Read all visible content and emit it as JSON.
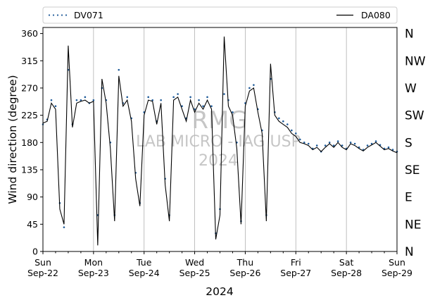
{
  "chart_data": {
    "type": "line",
    "xlabel": "2024",
    "ylabel": "Wind direction (degree)",
    "ylim": [
      0,
      370
    ],
    "xlim": [
      "2024-09-22 00:00",
      "2024-09-29 00:00"
    ],
    "grid": "vertical lines at day boundaries",
    "legend": {
      "placement": "top (above plot)"
    },
    "y_ticks": [
      0,
      45,
      90,
      135,
      180,
      225,
      270,
      315,
      360
    ],
    "x_ticks": [
      {
        "day": "Sun",
        "date": "Sep-22"
      },
      {
        "day": "Mon",
        "date": "Sep-23"
      },
      {
        "day": "Tue",
        "date": "Sep-24"
      },
      {
        "day": "Wed",
        "date": "Sep-25"
      },
      {
        "day": "Thu",
        "date": "Sep-26"
      },
      {
        "day": "Fri",
        "date": "Sep-27"
      },
      {
        "day": "Sat",
        "date": "Sep-28"
      },
      {
        "day": "Sun",
        "date": "Sep-29"
      }
    ],
    "right_labels": [
      "N",
      "NE",
      "E",
      "SE",
      "S",
      "SW",
      "W",
      "NW",
      "N"
    ],
    "watermark": {
      "line1": "RMG",
      "line2": "LAB MICRO - IAG USP",
      "line3": "2024"
    },
    "series": [
      {
        "name": "DV071",
        "style": "dotted markers",
        "color": "#1f5b99",
        "x_hours": [
          0,
          2,
          4,
          6,
          8,
          10,
          12,
          14,
          16,
          18,
          20,
          22,
          24,
          26,
          28,
          30,
          32,
          34,
          36,
          38,
          40,
          42,
          44,
          46,
          48,
          50,
          52,
          54,
          56,
          58,
          60,
          62,
          64,
          66,
          68,
          70,
          72,
          74,
          76,
          78,
          80,
          82,
          84,
          86,
          88,
          90,
          92,
          94,
          96,
          98,
          100,
          102,
          104,
          106,
          108,
          110,
          112,
          114,
          116,
          118,
          120,
          122,
          124,
          126,
          128,
          130,
          132,
          134,
          136,
          138,
          140,
          142,
          144,
          146,
          148,
          150,
          152,
          154,
          156,
          158,
          160,
          162,
          164,
          166,
          168
        ],
        "values": [
          210,
          218,
          250,
          240,
          80,
          40,
          300,
          210,
          250,
          250,
          255,
          245,
          250,
          60,
          270,
          250,
          180,
          60,
          300,
          245,
          255,
          220,
          130,
          80,
          230,
          255,
          250,
          215,
          250,
          120,
          60,
          255,
          260,
          240,
          220,
          255,
          235,
          250,
          240,
          255,
          240,
          30,
          70,
          260,
          250,
          230,
          180,
          50,
          245,
          270,
          275,
          235,
          200,
          60,
          285,
          230,
          220,
          215,
          210,
          200,
          195,
          185,
          180,
          178,
          170,
          175,
          165,
          175,
          180,
          175,
          182,
          175,
          170,
          180,
          178,
          172,
          168,
          175,
          178,
          182,
          176,
          170,
          172,
          168,
          165
        ]
      },
      {
        "name": "DA080",
        "style": "solid line",
        "color": "#000000",
        "x_hours": [
          0,
          2,
          4,
          6,
          8,
          10,
          12,
          14,
          16,
          18,
          20,
          22,
          24,
          26,
          28,
          30,
          32,
          34,
          36,
          38,
          40,
          42,
          44,
          46,
          48,
          50,
          52,
          54,
          56,
          58,
          60,
          62,
          64,
          66,
          68,
          70,
          72,
          74,
          76,
          78,
          80,
          82,
          84,
          86,
          88,
          90,
          92,
          94,
          96,
          98,
          100,
          102,
          104,
          106,
          108,
          110,
          112,
          114,
          116,
          118,
          120,
          122,
          124,
          126,
          128,
          130,
          132,
          134,
          136,
          138,
          140,
          142,
          144,
          146,
          148,
          150,
          152,
          154,
          156,
          158,
          160,
          162,
          164,
          166,
          168
        ],
        "values": [
          212,
          215,
          245,
          235,
          70,
          45,
          340,
          205,
          245,
          248,
          250,
          245,
          248,
          10,
          285,
          245,
          170,
          50,
          290,
          240,
          250,
          215,
          120,
          75,
          225,
          250,
          248,
          210,
          245,
          110,
          50,
          250,
          255,
          235,
          215,
          250,
          230,
          245,
          235,
          250,
          235,
          20,
          60,
          355,
          240,
          225,
          170,
          45,
          240,
          265,
          270,
          230,
          195,
          50,
          310,
          225,
          215,
          210,
          205,
          195,
          190,
          180,
          178,
          175,
          168,
          172,
          165,
          172,
          178,
          172,
          180,
          172,
          168,
          178,
          175,
          170,
          166,
          172,
          176,
          180,
          174,
          168,
          170,
          166,
          163
        ]
      }
    ]
  },
  "legend": {
    "entries": [
      "DV071",
      "DA080"
    ]
  }
}
